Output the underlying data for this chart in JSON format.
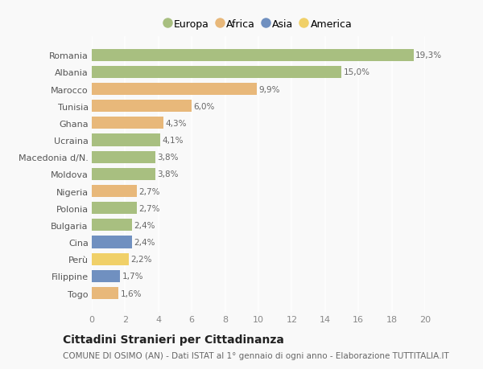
{
  "categories": [
    "Togo",
    "Filippine",
    "Perù",
    "Cina",
    "Bulgaria",
    "Polonia",
    "Nigeria",
    "Moldova",
    "Macedonia d/N.",
    "Ucraina",
    "Ghana",
    "Tunisia",
    "Marocco",
    "Albania",
    "Romania"
  ],
  "values": [
    1.6,
    1.7,
    2.2,
    2.4,
    2.4,
    2.7,
    2.7,
    3.8,
    3.8,
    4.1,
    4.3,
    6.0,
    9.9,
    15.0,
    19.3
  ],
  "labels": [
    "1,6%",
    "1,7%",
    "2,2%",
    "2,4%",
    "2,4%",
    "2,7%",
    "2,7%",
    "3,8%",
    "3,8%",
    "4,1%",
    "4,3%",
    "6,0%",
    "9,9%",
    "15,0%",
    "19,3%"
  ],
  "continents": [
    "Africa",
    "Asia",
    "America",
    "Asia",
    "Europa",
    "Europa",
    "Africa",
    "Europa",
    "Europa",
    "Europa",
    "Africa",
    "Africa",
    "Africa",
    "Europa",
    "Europa"
  ],
  "colors": {
    "Europa": "#a8bf80",
    "Africa": "#e8b87a",
    "Asia": "#7090c0",
    "America": "#f0d068"
  },
  "title": "Cittadini Stranieri per Cittadinanza",
  "subtitle": "COMUNE DI OSIMO (AN) - Dati ISTAT al 1° gennaio di ogni anno - Elaborazione TUTTITALIA.IT",
  "xlim": [
    0,
    20
  ],
  "xticks": [
    0,
    2,
    4,
    6,
    8,
    10,
    12,
    14,
    16,
    18,
    20
  ],
  "background_color": "#f9f9f9",
  "grid_color": "#ffffff",
  "bar_height": 0.72,
  "title_fontsize": 10,
  "subtitle_fontsize": 7.5,
  "label_fontsize": 7.5,
  "tick_fontsize": 8,
  "legend_fontsize": 9,
  "legend_labels": [
    "Europa",
    "Africa",
    "Asia",
    "America"
  ]
}
